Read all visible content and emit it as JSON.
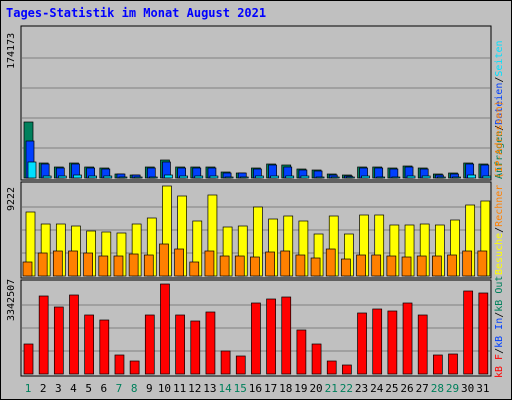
{
  "title": "Tages-Statistik im Monat August 2021",
  "colors": {
    "background": "#c0c0c0",
    "title": "#0000ff",
    "hits": "#00805c",
    "files": "#0040ff",
    "pages": "#00e0ff",
    "visits": "#ffff00",
    "sites": "#ff8000",
    "kbytes": "#ff0000",
    "grid": "#808080",
    "weekday_label": "#000000",
    "weekend_label": "#00805c"
  },
  "legend_top": {
    "items": [
      {
        "label": "Anfragen",
        "color": "#00805c"
      },
      {
        "label": "Dateien",
        "color": "#0040ff"
      },
      {
        "label": "Seiten",
        "color": "#00e0ff"
      }
    ],
    "separator": "/"
  },
  "legend_mid": {
    "items": [
      {
        "label": "Besuche",
        "color": "#ffff00"
      },
      {
        "label": "Rechner (IP-Adressen)",
        "color": "#ff8000"
      }
    ],
    "separator": "/"
  },
  "legend_bot": {
    "items": [
      {
        "label": "kB F",
        "color": "#ff0000"
      },
      {
        "label": "kB In",
        "color": "#0040ff"
      },
      {
        "label": "kB Out",
        "color": "#00805c"
      }
    ],
    "separator": "/"
  },
  "chart_data": {
    "type": "bar",
    "title": "Tages-Statistik im Monat August 2021",
    "categories": [
      "1",
      "2",
      "3",
      "4",
      "5",
      "6",
      "7",
      "8",
      "9",
      "10",
      "11",
      "12",
      "13",
      "14",
      "15",
      "16",
      "17",
      "18",
      "19",
      "20",
      "21",
      "22",
      "23",
      "24",
      "25",
      "26",
      "27",
      "28",
      "29",
      "30",
      "31"
    ],
    "weekend_days": [
      "1",
      "7",
      "8",
      "14",
      "15",
      "21",
      "22",
      "28",
      "29"
    ],
    "panels": [
      {
        "ymax": 174173,
        "series": [
          {
            "name": "Anfragen",
            "values": [
              66000,
              17400,
              13100,
              17400,
              12900,
              11800,
              5000,
              3900,
              12400,
              21100,
              12500,
              12400,
              13000,
              6600,
              6100,
              12000,
              16400,
              14800,
              10200,
              9400,
              4300,
              3300,
              12900,
              12900,
              11800,
              14000,
              11200,
              5000,
              5400,
              17100,
              16900
            ]
          },
          {
            "name": "Dateien",
            "values": [
              43000,
              16500,
              12000,
              16500,
              11600,
              11000,
              4300,
              3000,
              11400,
              18900,
              11400,
              11400,
              11900,
              5900,
              5500,
              11000,
              15100,
              13500,
              9000,
              8200,
              3400,
              2400,
              11700,
              11700,
              11000,
              13000,
              10200,
              4100,
              4500,
              16000,
              15400
            ]
          },
          {
            "name": "Seiten",
            "values": [
              19000,
              2000,
              2100,
              3400,
              1800,
              1900,
              900,
              800,
              1700,
              3200,
              1800,
              2100,
              2000,
              1700,
              1600,
              2000,
              2700,
              2600,
              1800,
              1600,
              1200,
              1000,
              1900,
              1700,
              1700,
              2400,
              2000,
              1100,
              1200,
              3100,
              2700
            ]
          }
        ]
      },
      {
        "ymax": 9222,
        "series": [
          {
            "name": "Besuche",
            "values": [
              6600,
              5300,
              5300,
              5100,
              4600,
              4500,
              4400,
              5300,
              5900,
              9222,
              8200,
              5600,
              8300,
              5000,
              5100,
              7100,
              5800,
              6100,
              5600,
              4300,
              6100,
              4300,
              6300,
              6300,
              5200,
              5200,
              5300,
              5200,
              5700,
              7300,
              7700
            ]
          },
          {
            "name": "Rechner (IP-Adressen)",
            "values": [
              1400,
              2400,
              2600,
              2600,
              2400,
              2100,
              2000,
              2300,
              2200,
              3300,
              2800,
              1400,
              2600,
              2000,
              2000,
              1900,
              2500,
              2600,
              2200,
              1800,
              2800,
              1700,
              2200,
              2200,
              2000,
              1900,
              2000,
              2100,
              2200,
              2600,
              2600
            ]
          }
        ]
      },
      {
        "ymax": 3342507,
        "series": [
          {
            "name": "kB F",
            "values": [
              1100000,
              2900000,
              2500000,
              2950000,
              2200000,
              2020000,
              700000,
              500000,
              2200000,
              3342507,
              2200000,
              1980000,
              2300000,
              850000,
              650000,
              2650000,
              2800000,
              2850000,
              1650000,
              1100000,
              500000,
              350000,
              2250000,
              2400000,
              2350000,
              2650000,
              2200000,
              700000,
              750000,
              3100000,
              3000000
            ]
          }
        ]
      }
    ]
  }
}
